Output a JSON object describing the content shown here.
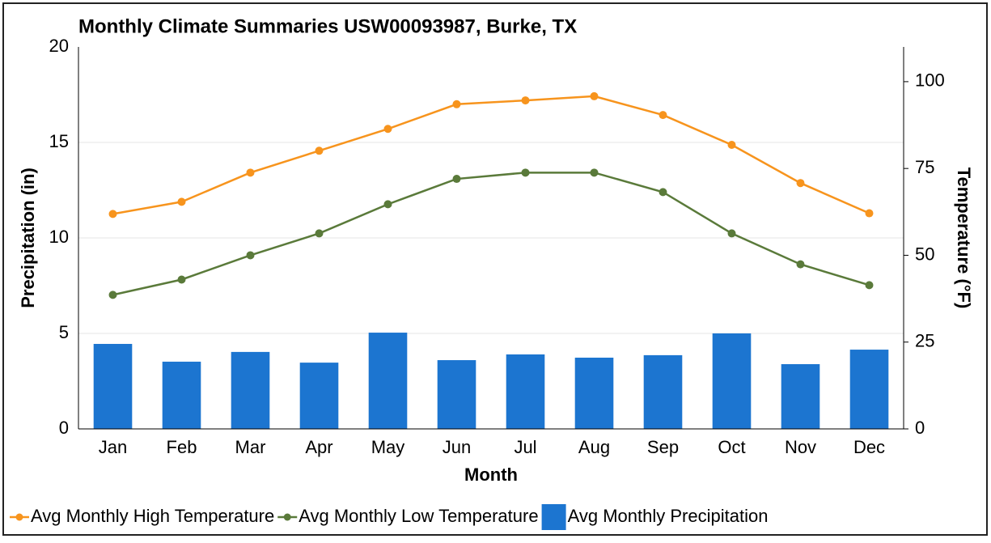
{
  "chart_data": {
    "type": "combo",
    "title": "Monthly Climate Summaries USW00093987, Burke, TX",
    "x_label": "Month",
    "y_label": "Precipitation (in)",
    "y2_label": "Temperature (°F)",
    "categories": [
      "Jan",
      "Feb",
      "Mar",
      "Apr",
      "May",
      "Jun",
      "Jul",
      "Aug",
      "Sep",
      "Oct",
      "Nov",
      "Dec"
    ],
    "series": [
      {
        "name": "Avg Monthly High Temperature",
        "type": "line",
        "axis": "y2",
        "color": "#f7941d",
        "values": [
          61.9,
          65.4,
          73.8,
          80.1,
          86.4,
          93.5,
          94.6,
          95.8,
          90.4,
          81.8,
          70.8,
          62.1
        ]
      },
      {
        "name": "Avg Monthly Low Temperature",
        "type": "line",
        "axis": "y2",
        "color": "#5a7a3a",
        "values": [
          38.6,
          43.0,
          50.0,
          56.3,
          64.7,
          72.0,
          73.8,
          73.8,
          68.2,
          56.3,
          47.4,
          41.4
        ]
      },
      {
        "name": "Avg Monthly Precipitation",
        "type": "bar",
        "axis": "y",
        "color": "#1c75d0",
        "values": [
          4.45,
          3.52,
          4.03,
          3.47,
          5.04,
          3.6,
          3.9,
          3.73,
          3.86,
          5.0,
          3.39,
          4.15
        ]
      }
    ],
    "ylim": [
      0,
      20
    ],
    "yticks": [
      0,
      5,
      10,
      15,
      20
    ],
    "y2lim": [
      0,
      110
    ],
    "y2ticks": [
      0,
      25,
      50,
      75,
      100
    ],
    "grid": true,
    "legend": "bottom"
  }
}
